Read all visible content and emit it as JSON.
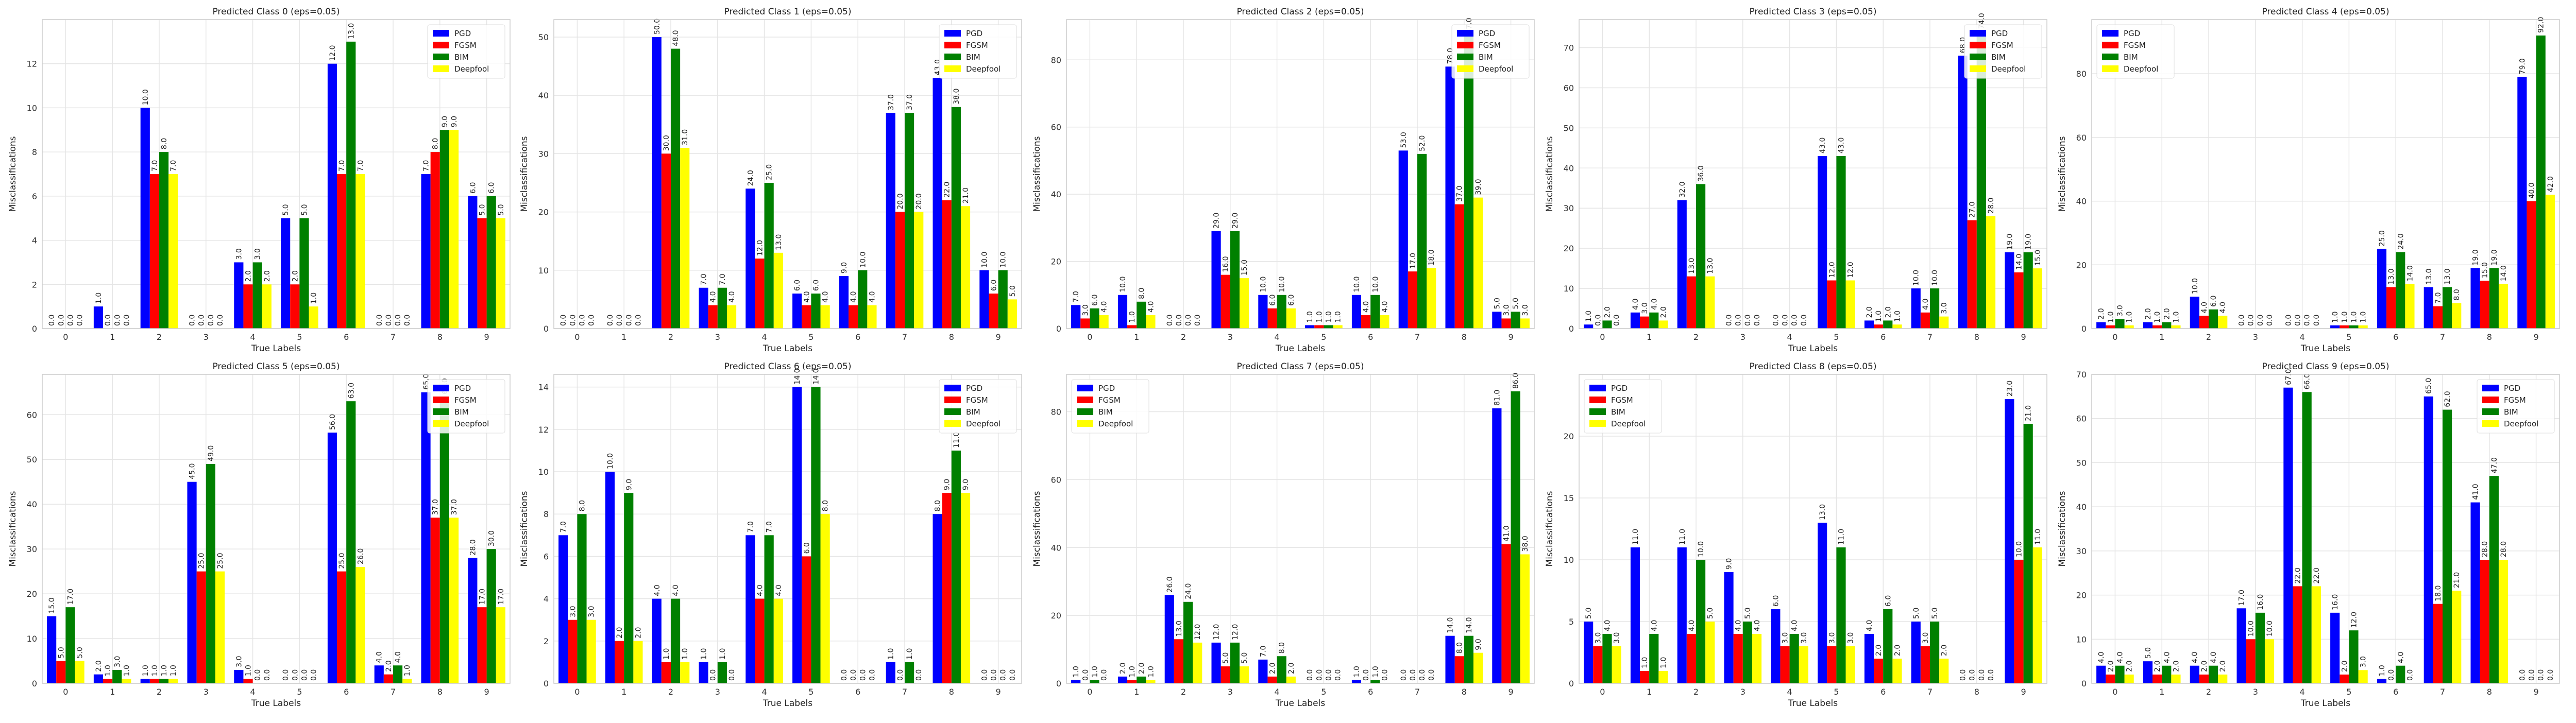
{
  "figure": {
    "series_colors": {
      "PGD": "#0000ff",
      "FGSM": "#ff0000",
      "BIM": "#008000",
      "Deepfool": "#ffff00"
    },
    "frame_color": "#cccccc",
    "grid_color": "#e5e5e5"
  },
  "chart_data": [
    {
      "type": "bar",
      "title": "Predicted Class 0 (eps=0.05)",
      "xlabel": "True Labels",
      "ylabel": "Misclassifications",
      "categories": [
        "0",
        "1",
        "2",
        "3",
        "4",
        "5",
        "6",
        "7",
        "8",
        "9"
      ],
      "ylim": [
        0,
        14.0
      ],
      "yticks": [
        0,
        2,
        4,
        6,
        8,
        10,
        12
      ],
      "grid": true,
      "legend_position": "top-right",
      "series": [
        {
          "name": "PGD",
          "values": [
            0,
            1,
            10,
            0,
            3,
            5,
            12,
            0,
            7,
            6
          ]
        },
        {
          "name": "FGSM",
          "values": [
            0,
            0,
            7,
            0,
            2,
            2,
            7,
            0,
            8,
            5
          ]
        },
        {
          "name": "BIM",
          "values": [
            0,
            0,
            8,
            0,
            3,
            5,
            13,
            0,
            9,
            6
          ]
        },
        {
          "name": "Deepfool",
          "values": [
            0,
            0,
            7,
            0,
            2,
            1,
            7,
            0,
            9,
            5
          ]
        }
      ]
    },
    {
      "type": "bar",
      "title": "Predicted Class 1 (eps=0.05)",
      "xlabel": "True Labels",
      "ylabel": "Misclassifications",
      "categories": [
        "0",
        "1",
        "2",
        "3",
        "4",
        "5",
        "6",
        "7",
        "8",
        "9"
      ],
      "ylim": [
        0,
        53.0
      ],
      "yticks": [
        0,
        10,
        20,
        30,
        40,
        50
      ],
      "grid": true,
      "legend_position": "top-right",
      "series": [
        {
          "name": "PGD",
          "values": [
            0,
            0,
            50,
            7,
            24,
            6,
            9,
            37,
            43,
            10
          ]
        },
        {
          "name": "FGSM",
          "values": [
            0,
            0,
            30,
            4,
            12,
            4,
            4,
            20,
            22,
            6
          ]
        },
        {
          "name": "BIM",
          "values": [
            0,
            0,
            48,
            7,
            25,
            6,
            10,
            37,
            38,
            10
          ]
        },
        {
          "name": "Deepfool",
          "values": [
            0,
            0,
            31,
            4,
            13,
            4,
            4,
            20,
            21,
            5
          ]
        }
      ]
    },
    {
      "type": "bar",
      "title": "Predicted Class 2 (eps=0.05)",
      "xlabel": "True Labels",
      "ylabel": "Misclassifications",
      "categories": [
        "0",
        "1",
        "2",
        "3",
        "4",
        "5",
        "6",
        "7",
        "8",
        "9"
      ],
      "ylim": [
        0,
        92.0
      ],
      "yticks": [
        0,
        20,
        40,
        60,
        80
      ],
      "grid": true,
      "legend_position": "top-right",
      "series": [
        {
          "name": "PGD",
          "values": [
            7,
            10,
            0,
            29,
            10,
            1,
            10,
            53,
            78,
            5
          ]
        },
        {
          "name": "FGSM",
          "values": [
            3,
            1,
            0,
            16,
            6,
            1,
            4,
            17,
            37,
            3
          ]
        },
        {
          "name": "BIM",
          "values": [
            6,
            8,
            0,
            29,
            10,
            1,
            10,
            52,
            87,
            5
          ]
        },
        {
          "name": "Deepfool",
          "values": [
            4,
            4,
            0,
            15,
            6,
            1,
            4,
            18,
            39,
            3
          ]
        }
      ]
    },
    {
      "type": "bar",
      "title": "Predicted Class 3 (eps=0.05)",
      "xlabel": "True Labels",
      "ylabel": "Misclassifications",
      "categories": [
        "0",
        "1",
        "2",
        "3",
        "4",
        "5",
        "6",
        "7",
        "8",
        "9"
      ],
      "ylim": [
        0,
        77.0
      ],
      "yticks": [
        0,
        10,
        20,
        30,
        40,
        50,
        60,
        70
      ],
      "grid": true,
      "legend_position": "top-right",
      "series": [
        {
          "name": "PGD",
          "values": [
            1,
            4,
            32,
            0,
            0,
            43,
            2,
            10,
            68,
            19
          ]
        },
        {
          "name": "FGSM",
          "values": [
            0,
            3,
            13,
            0,
            0,
            12,
            1,
            4,
            27,
            14
          ]
        },
        {
          "name": "BIM",
          "values": [
            2,
            4,
            36,
            0,
            0,
            43,
            2,
            10,
            74,
            19
          ]
        },
        {
          "name": "Deepfool",
          "values": [
            0,
            2,
            13,
            0,
            0,
            12,
            1,
            3,
            28,
            15
          ]
        }
      ]
    },
    {
      "type": "bar",
      "title": "Predicted Class 4 (eps=0.05)",
      "xlabel": "True Labels",
      "ylabel": "Misclassifications",
      "categories": [
        "0",
        "1",
        "2",
        "3",
        "4",
        "5",
        "6",
        "7",
        "8",
        "9"
      ],
      "ylim": [
        0,
        97.0
      ],
      "yticks": [
        0,
        20,
        40,
        60,
        80
      ],
      "grid": true,
      "legend_position": "top-left",
      "series": [
        {
          "name": "PGD",
          "values": [
            2,
            2,
            10,
            0,
            0,
            1,
            25,
            13,
            19,
            79
          ]
        },
        {
          "name": "FGSM",
          "values": [
            1,
            1,
            4,
            0,
            0,
            1,
            13,
            7,
            15,
            40
          ]
        },
        {
          "name": "BIM",
          "values": [
            3,
            2,
            6,
            0,
            0,
            1,
            24,
            13,
            19,
            92
          ]
        },
        {
          "name": "Deepfool",
          "values": [
            1,
            1,
            4,
            0,
            0,
            1,
            14,
            8,
            14,
            42
          ]
        }
      ]
    },
    {
      "type": "bar",
      "title": "Predicted Class 5 (eps=0.05)",
      "xlabel": "True Labels",
      "ylabel": "Misclassifications",
      "categories": [
        "0",
        "1",
        "2",
        "3",
        "4",
        "5",
        "6",
        "7",
        "8",
        "9"
      ],
      "ylim": [
        0,
        69.0
      ],
      "yticks": [
        0,
        10,
        20,
        30,
        40,
        50,
        60
      ],
      "grid": true,
      "legend_position": "top-right",
      "series": [
        {
          "name": "PGD",
          "values": [
            15,
            2,
            1,
            45,
            3,
            0,
            56,
            4,
            65,
            28
          ]
        },
        {
          "name": "FGSM",
          "values": [
            5,
            1,
            1,
            25,
            1,
            0,
            25,
            2,
            37,
            17
          ]
        },
        {
          "name": "BIM",
          "values": [
            17,
            3,
            1,
            49,
            0,
            0,
            63,
            4,
            64,
            30
          ]
        },
        {
          "name": "Deepfool",
          "values": [
            5,
            1,
            1,
            25,
            0,
            0,
            26,
            1,
            37,
            17
          ]
        }
      ]
    },
    {
      "type": "bar",
      "title": "Predicted Class 6 (eps=0.05)",
      "xlabel": "True Labels",
      "ylabel": "Misclassifications",
      "categories": [
        "0",
        "1",
        "2",
        "3",
        "4",
        "5",
        "6",
        "7",
        "8",
        "9"
      ],
      "ylim": [
        0,
        14.6
      ],
      "yticks": [
        0,
        2,
        4,
        6,
        8,
        10,
        12,
        14
      ],
      "grid": true,
      "legend_position": "top-right",
      "series": [
        {
          "name": "PGD",
          "values": [
            7,
            10,
            4,
            1,
            7,
            14,
            0,
            1,
            8,
            0
          ]
        },
        {
          "name": "FGSM",
          "values": [
            3,
            2,
            1,
            0,
            4,
            6,
            0,
            0,
            9,
            0
          ]
        },
        {
          "name": "BIM",
          "values": [
            8,
            9,
            4,
            1,
            7,
            14,
            0,
            1,
            11,
            0
          ]
        },
        {
          "name": "Deepfool",
          "values": [
            3,
            2,
            1,
            0,
            4,
            8,
            0,
            0,
            9,
            0
          ]
        }
      ]
    },
    {
      "type": "bar",
      "title": "Predicted Class 7 (eps=0.05)",
      "xlabel": "True Labels",
      "ylabel": "Misclassifications",
      "categories": [
        "0",
        "1",
        "2",
        "3",
        "4",
        "5",
        "6",
        "7",
        "8",
        "9"
      ],
      "ylim": [
        0,
        91.0
      ],
      "yticks": [
        0,
        20,
        40,
        60,
        80
      ],
      "grid": true,
      "legend_position": "top-left",
      "series": [
        {
          "name": "PGD",
          "values": [
            1,
            2,
            26,
            12,
            7,
            0,
            1,
            0,
            14,
            81
          ]
        },
        {
          "name": "FGSM",
          "values": [
            0,
            1,
            13,
            5,
            2,
            0,
            0,
            0,
            8,
            41
          ]
        },
        {
          "name": "BIM",
          "values": [
            1,
            2,
            24,
            12,
            8,
            0,
            1,
            0,
            14,
            86
          ]
        },
        {
          "name": "Deepfool",
          "values": [
            0,
            1,
            12,
            5,
            2,
            0,
            0,
            0,
            9,
            38
          ]
        }
      ]
    },
    {
      "type": "bar",
      "title": "Predicted Class 8 (eps=0.05)",
      "xlabel": "True Labels",
      "ylabel": "Misclassifications",
      "categories": [
        "0",
        "1",
        "2",
        "3",
        "4",
        "5",
        "6",
        "7",
        "8",
        "9"
      ],
      "ylim": [
        0,
        25.0
      ],
      "yticks": [
        0,
        5,
        10,
        15,
        20
      ],
      "grid": true,
      "legend_position": "top-left",
      "series": [
        {
          "name": "PGD",
          "values": [
            5,
            11,
            11,
            9,
            6,
            13,
            4,
            5,
            0,
            23
          ]
        },
        {
          "name": "FGSM",
          "values": [
            3,
            1,
            4,
            4,
            3,
            3,
            2,
            3,
            0,
            10
          ]
        },
        {
          "name": "BIM",
          "values": [
            4,
            4,
            10,
            5,
            4,
            11,
            6,
            5,
            0,
            21
          ]
        },
        {
          "name": "Deepfool",
          "values": [
            3,
            1,
            5,
            4,
            3,
            3,
            2,
            2,
            0,
            11
          ]
        }
      ]
    },
    {
      "type": "bar",
      "title": "Predicted Class 9 (eps=0.05)",
      "xlabel": "True Labels",
      "ylabel": "Misclassifications",
      "categories": [
        "0",
        "1",
        "2",
        "3",
        "4",
        "5",
        "6",
        "7",
        "8",
        "9"
      ],
      "ylim": [
        0,
        70.0
      ],
      "yticks": [
        0,
        10,
        20,
        30,
        40,
        50,
        60,
        70
      ],
      "grid": true,
      "legend_position": "top-right",
      "series": [
        {
          "name": "PGD",
          "values": [
            4,
            5,
            4,
            17,
            67,
            16,
            1,
            65,
            41,
            0
          ]
        },
        {
          "name": "FGSM",
          "values": [
            2,
            2,
            2,
            10,
            22,
            2,
            0,
            18,
            28,
            0
          ]
        },
        {
          "name": "BIM",
          "values": [
            4,
            4,
            4,
            16,
            66,
            12,
            4,
            62,
            47,
            0
          ]
        },
        {
          "name": "Deepfool",
          "values": [
            2,
            2,
            2,
            10,
            22,
            3,
            0,
            21,
            28,
            0
          ]
        }
      ]
    }
  ]
}
